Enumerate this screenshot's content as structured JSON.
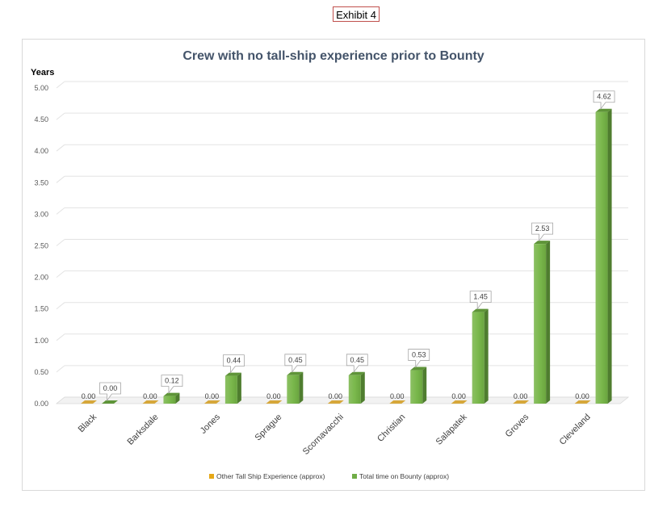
{
  "exhibit_label": "Exhibit 4",
  "chart_data": {
    "type": "bar",
    "title": "Crew with no tall-ship experience prior to Bounty",
    "ylabel": "Years",
    "xlabel": "",
    "ylim": [
      0,
      5
    ],
    "yticks": [
      "0.00",
      "0.50",
      "1.00",
      "1.50",
      "2.00",
      "2.50",
      "3.00",
      "3.50",
      "4.00",
      "4.50",
      "5.00"
    ],
    "categories": [
      "Black",
      "Barksdale",
      "Jones",
      "Sprague",
      "Scornavacchi",
      "Christian",
      "Salapatek",
      "Groves",
      "Cleveland"
    ],
    "series": [
      {
        "name": "Other Tall Ship Experience (approx)",
        "color": "#e6a817",
        "values": [
          0,
          0,
          0,
          0,
          0,
          0,
          0,
          0,
          0
        ],
        "labels": [
          "0.00",
          "0.00",
          "0.00",
          "0.00",
          "0.00",
          "0.00",
          "0.00",
          "0.00",
          "0.00"
        ]
      },
      {
        "name": "Total time on Bounty (approx)",
        "color": "#70ad47",
        "values": [
          0,
          0.12,
          0.44,
          0.45,
          0.45,
          0.53,
          1.45,
          2.53,
          4.62
        ],
        "labels": [
          "0.00",
          "0.12",
          "0.44",
          "0.45",
          "0.45",
          "0.53",
          "1.45",
          "2.53",
          "4.62"
        ]
      }
    ],
    "grid": true,
    "legend": "bottom"
  }
}
